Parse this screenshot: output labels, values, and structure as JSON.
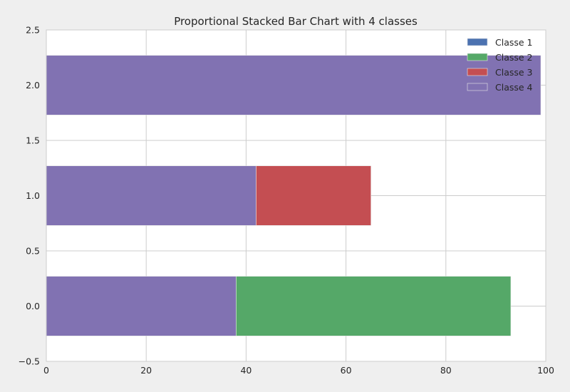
{
  "chart_data": {
    "type": "bar",
    "orientation": "horizontal",
    "stacked": true,
    "title": "Proportional Stacked Bar Chart with 4 classes",
    "xlabel": "",
    "ylabel": "",
    "xlim": [
      0,
      100
    ],
    "ylim": [
      -0.5,
      2.5
    ],
    "bar_positions": [
      0,
      1,
      2
    ],
    "bar_height": 0.54,
    "x_ticks": [
      0,
      20,
      40,
      60,
      80,
      100
    ],
    "x_tick_labels": [
      "0",
      "20",
      "40",
      "60",
      "80",
      "100"
    ],
    "y_ticks": [
      -0.5,
      0.0,
      0.5,
      1.0,
      1.5,
      2.0,
      2.5
    ],
    "y_tick_labels": [
      "−0.5",
      "0.0",
      "0.5",
      "1.0",
      "1.5",
      "2.0",
      "2.5"
    ],
    "grid": true,
    "legend_position": "top-right",
    "stack_order": [
      "Classe 4",
      "Classe 1",
      "Classe 2",
      "Classe 3"
    ],
    "series": [
      {
        "name": "Classe 1",
        "color": "#4c72b0",
        "values": [
          0,
          0,
          0
        ]
      },
      {
        "name": "Classe 2",
        "color": "#55a868",
        "values": [
          55,
          0,
          0
        ]
      },
      {
        "name": "Classe 3",
        "color": "#c44e52",
        "values": [
          0,
          23,
          0
        ]
      },
      {
        "name": "Classe 4",
        "color": "#8172b2",
        "values": [
          38,
          42,
          99
        ]
      }
    ]
  }
}
